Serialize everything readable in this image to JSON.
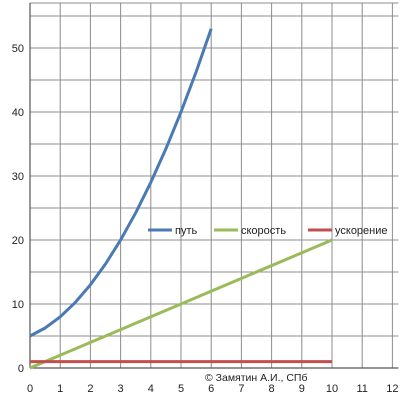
{
  "chart_data": {
    "type": "line",
    "title": "",
    "xlabel": "",
    "ylabel": "",
    "xlim": [
      0,
      12
    ],
    "ylim": [
      0,
      55
    ],
    "x_tick_labels": [
      "0",
      "1",
      "2",
      "3",
      "4",
      "5",
      "6",
      "7",
      "8",
      "9",
      "10",
      "11",
      "12"
    ],
    "y_tick_labels": [
      "0",
      "10",
      "20",
      "30",
      "40",
      "50"
    ],
    "y_ticks": [
      0,
      10,
      20,
      30,
      40,
      50
    ],
    "grid": true,
    "legend_position": "center",
    "series": [
      {
        "name": "путь",
        "color": "#4a7ab4",
        "x": [
          0,
          0.5,
          1,
          1.5,
          2,
          2.5,
          3,
          3.5,
          4,
          4.5,
          5,
          5.5,
          6
        ],
        "values": [
          5,
          6.25,
          8,
          10.25,
          13,
          16.25,
          20,
          24.25,
          29,
          34.25,
          40,
          46.25,
          53
        ]
      },
      {
        "name": "скорость",
        "color": "#9bbb59",
        "x": [
          0,
          10
        ],
        "values": [
          0,
          20
        ]
      },
      {
        "name": "ускорение",
        "color": "#c0504d",
        "x": [
          0,
          10
        ],
        "values": [
          1,
          1
        ]
      }
    ]
  },
  "credit": "© Замятин А.И., СПб"
}
